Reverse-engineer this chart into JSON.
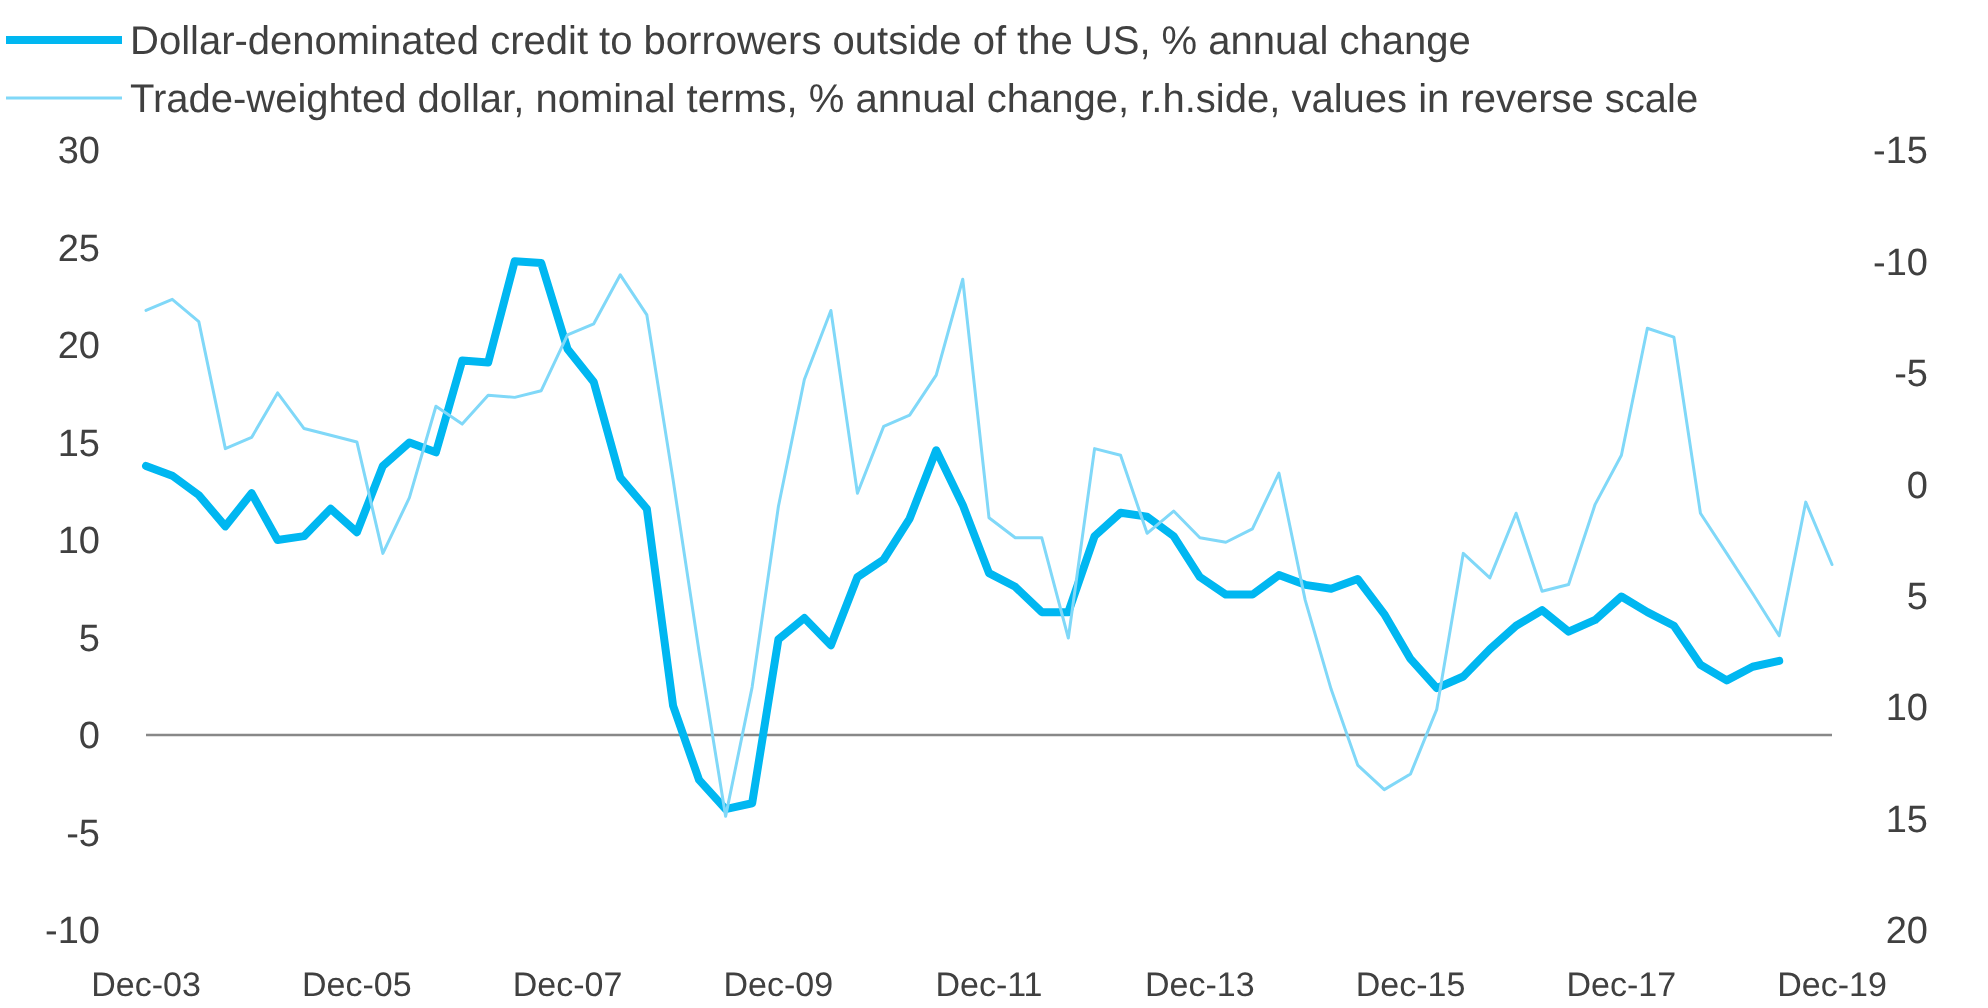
{
  "chart_data": {
    "type": "line",
    "x": [
      "2003-12",
      "2004-03",
      "2004-06",
      "2004-09",
      "2004-12",
      "2005-03",
      "2005-06",
      "2005-09",
      "2005-12",
      "2006-03",
      "2006-06",
      "2006-09",
      "2006-12",
      "2007-03",
      "2007-06",
      "2007-09",
      "2007-12",
      "2008-03",
      "2008-06",
      "2008-09",
      "2008-12",
      "2009-03",
      "2009-06",
      "2009-09",
      "2009-12",
      "2010-03",
      "2010-06",
      "2010-09",
      "2010-12",
      "2011-03",
      "2011-06",
      "2011-09",
      "2011-12",
      "2012-03",
      "2012-06",
      "2012-09",
      "2012-12",
      "2013-03",
      "2013-06",
      "2013-09",
      "2013-12",
      "2014-03",
      "2014-06",
      "2014-09",
      "2014-12",
      "2015-03",
      "2015-06",
      "2015-09",
      "2015-12",
      "2016-03",
      "2016-06",
      "2016-09",
      "2016-12",
      "2017-03",
      "2017-06",
      "2017-09",
      "2017-12",
      "2018-03",
      "2018-06",
      "2018-09",
      "2018-12",
      "2019-03",
      "2019-06",
      "2019-09",
      "2019-12"
    ],
    "series": [
      {
        "name": "Dollar-denominated credit to borrowers outside of the US, % annual change",
        "color": "#00b7f1",
        "values": [
          13.8,
          13.3,
          12.3,
          10.7,
          12.4,
          10.0,
          10.2,
          11.6,
          10.4,
          13.8,
          15.0,
          14.5,
          19.2,
          19.1,
          24.3,
          24.2,
          19.8,
          18.1,
          13.2,
          11.6,
          1.5,
          -2.3,
          -3.8,
          -3.5,
          4.9,
          6.0,
          4.6,
          8.1,
          9.0,
          11.1,
          14.6,
          11.8,
          8.3,
          7.6,
          6.3,
          6.3,
          10.2,
          11.4,
          11.2,
          10.2,
          8.1,
          7.2,
          7.2,
          8.2,
          7.7,
          7.5,
          8.0,
          6.2,
          3.9,
          2.4,
          3.0,
          4.4,
          5.6,
          6.4,
          5.3,
          5.9,
          7.1,
          6.3,
          5.6,
          3.6,
          2.8,
          3.5,
          3.8,
          null,
          null
        ]
      },
      {
        "name": "Trade-weighted dollar, nominal terms, % annual change, r.h.side, values in reverse scale",
        "color": "#80d8f8",
        "axis": "y2",
        "values": [
          -7.8,
          -8.3,
          -7.3,
          -1.6,
          -2.1,
          -4.1,
          -2.5,
          -2.2,
          -1.9,
          3.1,
          0.6,
          -3.5,
          -2.7,
          -4.0,
          -3.9,
          -4.2,
          -6.7,
          -7.2,
          -9.4,
          -7.6,
          -0.2,
          7.5,
          14.9,
          9.1,
          1.0,
          -4.7,
          -7.8,
          0.4,
          -2.6,
          -3.1,
          -4.9,
          -9.2,
          1.5,
          2.4,
          2.4,
          6.9,
          -1.6,
          -1.3,
          2.2,
          1.2,
          2.4,
          2.6,
          2.0,
          -0.5,
          5.2,
          9.2,
          12.6,
          13.7,
          13.0,
          10.1,
          3.1,
          4.2,
          1.3,
          4.8,
          4.5,
          0.9,
          -1.3,
          -7.0,
          -6.6,
          1.3,
          3.1,
          4.9,
          6.8,
          0.8,
          3.6
        ]
      }
    ],
    "xlim": [
      "2003-12",
      "2019-12"
    ],
    "xticks": [
      {
        "value": "2003-12",
        "label": "Dec-03"
      },
      {
        "value": "2005-12",
        "label": "Dec-05"
      },
      {
        "value": "2007-12",
        "label": "Dec-07"
      },
      {
        "value": "2009-12",
        "label": "Dec-09"
      },
      {
        "value": "2011-12",
        "label": "Dec-11"
      },
      {
        "value": "2013-12",
        "label": "Dec-13"
      },
      {
        "value": "2015-12",
        "label": "Dec-15"
      },
      {
        "value": "2017-12",
        "label": "Dec-17"
      },
      {
        "value": "2019-12",
        "label": "Dec-19"
      }
    ],
    "ylim": [
      -10,
      30
    ],
    "yticks": [
      -10,
      -5,
      0,
      5,
      10,
      15,
      20,
      25,
      30
    ],
    "y2lim": [
      20,
      -15
    ],
    "y2ticks": [
      -15,
      -10,
      -5,
      0,
      5,
      10,
      15,
      20
    ],
    "ref_lines": [
      {
        "axis": "y",
        "value": 0,
        "color": "#888888"
      }
    ],
    "legend": "top left"
  }
}
